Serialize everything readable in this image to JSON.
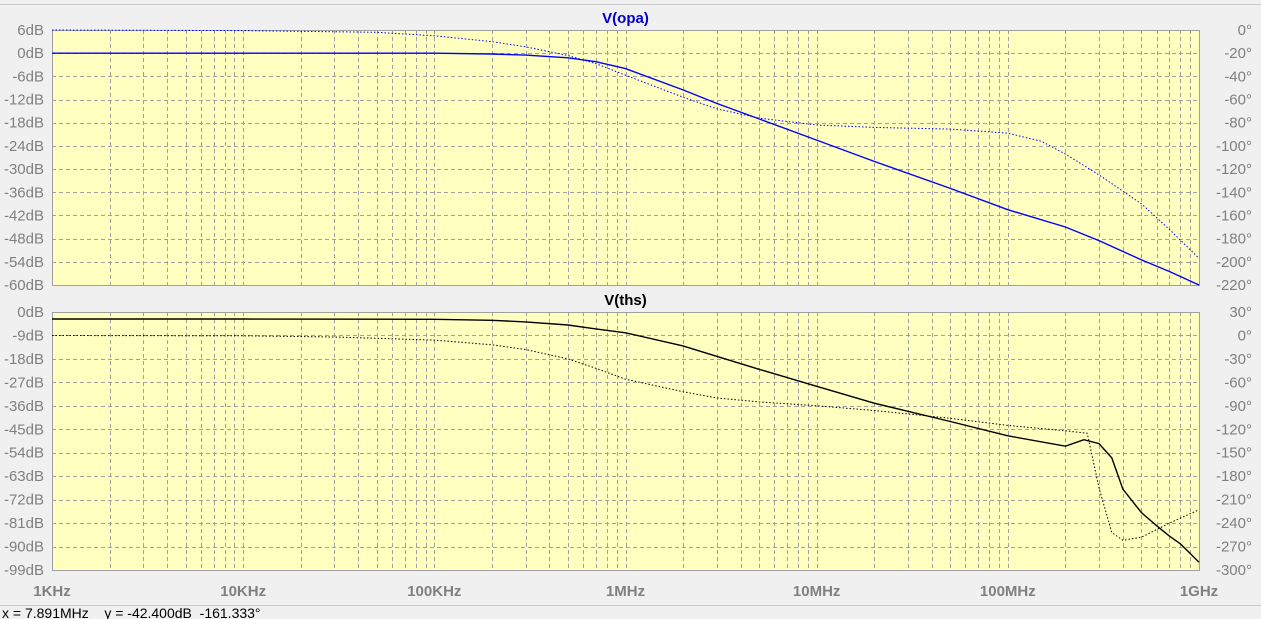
{
  "window": {
    "readout": "x = 7.891MHz    y = -42.400dB  -161.333°"
  },
  "colors": {
    "background": "#ffffc0",
    "grid": "#a0a0a0",
    "axis_text": "#808080",
    "pane1_trace": "#0000ff",
    "pane1_title": "#0000cc",
    "pane2_trace": "#000000",
    "pane2_title": "#000000"
  },
  "chart_data": [
    {
      "type": "line",
      "title": "V(opa)",
      "x_scale": "log",
      "x_range_hz": [
        1000,
        1000000000
      ],
      "xtick_labels": [
        "1KHz",
        "10KHz",
        "100KHz",
        "1MHz",
        "10MHz",
        "100MHz",
        "1GHz"
      ],
      "xtick_values": [
        1000,
        10000,
        100000,
        1000000,
        10000000,
        100000000,
        1000000000
      ],
      "ylim_left": [
        -60,
        6
      ],
      "yticks_left": [
        6,
        0,
        -6,
        -12,
        -18,
        -24,
        -30,
        -36,
        -42,
        -48,
        -54,
        -60
      ],
      "ytick_labels_left": [
        "6dB",
        "0dB",
        "-6dB",
        "-12dB",
        "-18dB",
        "-24dB",
        "-30dB",
        "-36dB",
        "-42dB",
        "-48dB",
        "-54dB",
        "-60dB"
      ],
      "ylim_right": [
        -220,
        0
      ],
      "yticks_right": [
        0,
        -20,
        -40,
        -60,
        -80,
        -100,
        -120,
        -140,
        -160,
        -180,
        -200,
        -220
      ],
      "ytick_labels_right": [
        "0°",
        "-20°",
        "-40°",
        "-60°",
        "-80°",
        "-100°",
        "-120°",
        "-140°",
        "-160°",
        "-180°",
        "-200°",
        "-220°"
      ],
      "grid": true,
      "series": [
        {
          "kind": "magnitude_dB",
          "style": "solid",
          "x": [
            1000,
            10000,
            100000,
            200000,
            300000,
            500000,
            700000,
            1000000,
            2000000,
            3000000,
            5000000,
            10000000,
            20000000,
            50000000,
            100000000,
            200000000,
            300000000,
            500000000,
            700000000,
            1000000000
          ],
          "y": [
            0,
            0,
            0,
            -0.2,
            -0.5,
            -1.2,
            -2.2,
            -4,
            -9.5,
            -13,
            -17,
            -22.5,
            -28,
            -35,
            -40.5,
            -45,
            -48.5,
            -53.5,
            -56.5,
            -60
          ]
        },
        {
          "kind": "phase_deg",
          "style": "dotted",
          "x": [
            1000,
            10000,
            50000,
            100000,
            200000,
            300000,
            500000,
            700000,
            1000000,
            2000000,
            3000000,
            5000000,
            10000000,
            20000000,
            50000000,
            100000000,
            150000000,
            200000000,
            300000000,
            500000000,
            700000000,
            1000000000
          ],
          "y": [
            0,
            -0.5,
            -2,
            -5,
            -10,
            -14.5,
            -22,
            -29,
            -39,
            -58,
            -68,
            -76,
            -82,
            -84,
            -85.5,
            -89,
            -96,
            -107,
            -125,
            -150,
            -172,
            -197
          ]
        }
      ]
    },
    {
      "type": "line",
      "title": "V(ths)",
      "x_scale": "log",
      "x_range_hz": [
        1000,
        1000000000
      ],
      "xtick_labels": [
        "1KHz",
        "10KHz",
        "100KHz",
        "1MHz",
        "10MHz",
        "100MHz",
        "1GHz"
      ],
      "xtick_values": [
        1000,
        10000,
        100000,
        1000000,
        10000000,
        100000000,
        1000000000
      ],
      "ylim_left": [
        -99,
        0
      ],
      "yticks_left": [
        0,
        -9,
        -18,
        -27,
        -36,
        -45,
        -54,
        -63,
        -72,
        -81,
        -90,
        -99
      ],
      "ytick_labels_left": [
        "0dB",
        "-9dB",
        "-18dB",
        "-27dB",
        "-36dB",
        "-45dB",
        "-54dB",
        "-63dB",
        "-72dB",
        "-81dB",
        "-90dB",
        "-99dB"
      ],
      "ylim_right": [
        -300,
        30
      ],
      "yticks_right": [
        30,
        0,
        -30,
        -60,
        -90,
        -120,
        -150,
        -180,
        -210,
        -240,
        -270,
        -300
      ],
      "ytick_labels_right": [
        "30°",
        "0°",
        "-30°",
        "-60°",
        "-90°",
        "-120°",
        "-150°",
        "-180°",
        "-210°",
        "-240°",
        "-270°",
        "-300°"
      ],
      "grid": true,
      "series": [
        {
          "kind": "magnitude_dB",
          "style": "solid",
          "x": [
            1000,
            10000,
            100000,
            200000,
            300000,
            500000,
            700000,
            1000000,
            2000000,
            3000000,
            5000000,
            10000000,
            20000000,
            50000000,
            100000000,
            200000000,
            250000000,
            300000000,
            350000000,
            400000000,
            500000000,
            600000000,
            700000000,
            800000000,
            1000000000
          ],
          "y": [
            -2.7,
            -2.7,
            -2.8,
            -3.2,
            -3.8,
            -5,
            -6.5,
            -8,
            -13,
            -17,
            -22,
            -28.5,
            -35,
            -42,
            -47.5,
            -51.5,
            -49,
            -50.5,
            -56,
            -68,
            -77,
            -82,
            -86,
            -89,
            -96
          ]
        },
        {
          "kind": "phase_deg",
          "style": "dotted",
          "x": [
            1000,
            10000,
            30000,
            100000,
            200000,
            300000,
            500000,
            700000,
            1000000,
            2000000,
            3000000,
            5000000,
            10000000,
            20000000,
            50000000,
            100000000,
            200000000,
            260000000,
            300000000,
            350000000,
            400000000,
            500000000,
            700000000,
            1000000000
          ],
          "y": [
            0,
            -0.5,
            -2,
            -6,
            -12,
            -18,
            -30,
            -42,
            -56,
            -72,
            -80,
            -85,
            -90,
            -96,
            -106,
            -115,
            -122,
            -125,
            -195,
            -252,
            -262,
            -258,
            -240,
            -223
          ]
        }
      ]
    }
  ]
}
